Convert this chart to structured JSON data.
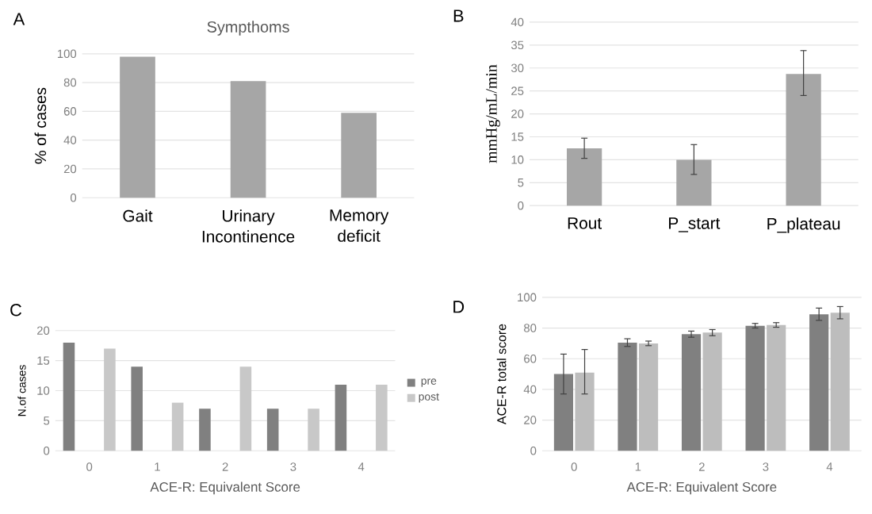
{
  "chart_data": [
    {
      "type": "bar",
      "title": "Sympthoms",
      "annotations": [
        "A"
      ],
      "ylabel": "% of cases",
      "categories": [
        "Gait",
        "Urinary Incontinence",
        "Memory deficit"
      ],
      "values": [
        98,
        81,
        59
      ],
      "color": "#a6a6a6",
      "ylim": [
        0,
        100
      ],
      "yticks": [
        0,
        20,
        40,
        60,
        80,
        100
      ],
      "grid": "y"
    },
    {
      "type": "bar",
      "annotations": [
        "B"
      ],
      "ylabel": "mmHg/mL/min",
      "categories": [
        "Rout",
        "P_start",
        "P_plateau"
      ],
      "values": [
        12.5,
        10,
        28.7
      ],
      "errors": [
        [
          10.3,
          14.7
        ],
        [
          6.8,
          13.3
        ],
        [
          24,
          33.8
        ]
      ],
      "color": "#a6a6a6",
      "ylim": [
        0,
        40
      ],
      "yticks": [
        0,
        5,
        10,
        15,
        20,
        25,
        30,
        35,
        40
      ],
      "grid": "y"
    },
    {
      "type": "bar",
      "annotations": [
        "C"
      ],
      "ylabel": "N.of cases",
      "xlabel": "ACE-R: Equivalent Score",
      "categories": [
        "0",
        "1",
        "2",
        "3",
        "4"
      ],
      "series": [
        {
          "name": "pre",
          "color": "#808080",
          "values": [
            18,
            14,
            7,
            7,
            11
          ]
        },
        {
          "name": "post",
          "color": "#c8c8c8",
          "values": [
            17,
            8,
            14,
            7,
            11
          ]
        }
      ],
      "ylim": [
        0,
        20
      ],
      "yticks": [
        0,
        5,
        10,
        15,
        20
      ],
      "grid": "y",
      "legend": "right"
    },
    {
      "type": "bar",
      "annotations": [
        "D"
      ],
      "ylabel": "ACE-R total score",
      "xlabel": "ACE-R: Equivalent Score",
      "categories": [
        "0",
        "1",
        "2",
        "3",
        "4"
      ],
      "series": [
        {
          "color": "#808080",
          "values": [
            50,
            70.5,
            76,
            81.5,
            89
          ],
          "errors": [
            [
              37,
              63
            ],
            [
              68,
              73
            ],
            [
              74,
              78
            ],
            [
              80,
              83
            ],
            [
              85,
              93
            ]
          ]
        },
        {
          "color": "#bdbdbd",
          "values": [
            51,
            70,
            77,
            82,
            90
          ],
          "errors": [
            [
              37,
              66
            ],
            [
              68.5,
              71.5
            ],
            [
              75,
              79
            ],
            [
              80.5,
              83.5
            ],
            [
              86,
              94
            ]
          ]
        }
      ],
      "ylim": [
        0,
        100
      ],
      "yticks": [
        0,
        20,
        40,
        60,
        80,
        100
      ],
      "grid": "y"
    }
  ]
}
